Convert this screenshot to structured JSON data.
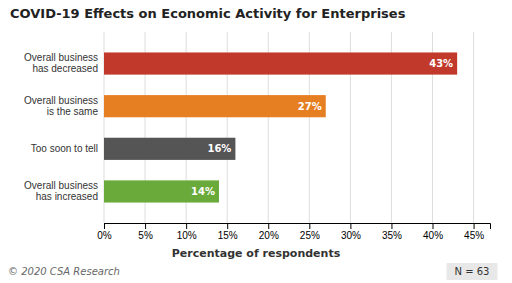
{
  "chart_data": {
    "type": "bar",
    "orientation": "horizontal",
    "title": "COVID-19 Effects on Economic Activity for Enterprises",
    "categories": [
      "Overall business\nhas decreased",
      "Overall business\nis the same",
      "Too soon to tell",
      "Overall business\nhas increased"
    ],
    "values": [
      43,
      27,
      16,
      14
    ],
    "value_labels": [
      "43%",
      "27%",
      "16%",
      "14%"
    ],
    "data_labels": true,
    "colors": [
      "#c0392b",
      "#e67e22",
      "#555555",
      "#6aaa3a"
    ],
    "xlabel": "Percentage of respondents",
    "xlim": [
      0,
      47
    ],
    "xticks": [
      {
        "value": 0,
        "label": "0%"
      },
      {
        "value": 5,
        "label": "5%"
      },
      {
        "value": 10,
        "label": "10%"
      },
      {
        "value": 15,
        "label": "15%"
      },
      {
        "value": 20,
        "label": "20%"
      },
      {
        "value": 25,
        "label": "25%"
      },
      {
        "value": 30,
        "label": "30%"
      },
      {
        "value": 35,
        "label": "35%"
      },
      {
        "value": 40,
        "label": "40%"
      },
      {
        "value": 45,
        "label": "45%"
      }
    ],
    "grid": true,
    "annotations": [
      "© 2020 CSA Research",
      "N = 63"
    ]
  }
}
